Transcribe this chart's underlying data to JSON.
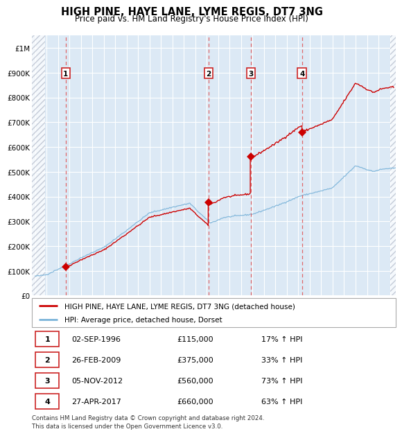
{
  "title": "HIGH PINE, HAYE LANE, LYME REGIS, DT7 3NG",
  "subtitle": "Price paid vs. HM Land Registry's House Price Index (HPI)",
  "ylim": [
    0,
    1050000
  ],
  "yticks": [
    0,
    100000,
    200000,
    300000,
    400000,
    500000,
    600000,
    700000,
    800000,
    900000,
    1000000
  ],
  "ytick_labels": [
    "£0",
    "£100K",
    "£200K",
    "£300K",
    "£400K",
    "£500K",
    "£600K",
    "£700K",
    "£800K",
    "£900K",
    "£1M"
  ],
  "xlim_start": 1993.7,
  "xlim_end": 2025.5,
  "hpi_color": "#7ab3d9",
  "price_color": "#cc0000",
  "dashed_color": "#e05050",
  "bg_color": "#dce9f5",
  "sales": [
    {
      "date": 1996.67,
      "price": 115000,
      "label": "1"
    },
    {
      "date": 2009.15,
      "price": 375000,
      "label": "2"
    },
    {
      "date": 2012.84,
      "price": 560000,
      "label": "3"
    },
    {
      "date": 2017.32,
      "price": 660000,
      "label": "4"
    }
  ],
  "sale_table": [
    {
      "num": "1",
      "date": "02-SEP-1996",
      "price": "£115,000",
      "pct": "17% ↑ HPI"
    },
    {
      "num": "2",
      "date": "26-FEB-2009",
      "price": "£375,000",
      "pct": "33% ↑ HPI"
    },
    {
      "num": "3",
      "date": "05-NOV-2012",
      "price": "£560,000",
      "pct": "73% ↑ HPI"
    },
    {
      "num": "4",
      "date": "27-APR-2017",
      "price": "£660,000",
      "pct": "63% ↑ HPI"
    }
  ],
  "legend_house": "HIGH PINE, HAYE LANE, LYME REGIS, DT7 3NG (detached house)",
  "legend_hpi": "HPI: Average price, detached house, Dorset",
  "footer": "Contains HM Land Registry data © Crown copyright and database right 2024.\nThis data is licensed under the Open Government Licence v3.0."
}
